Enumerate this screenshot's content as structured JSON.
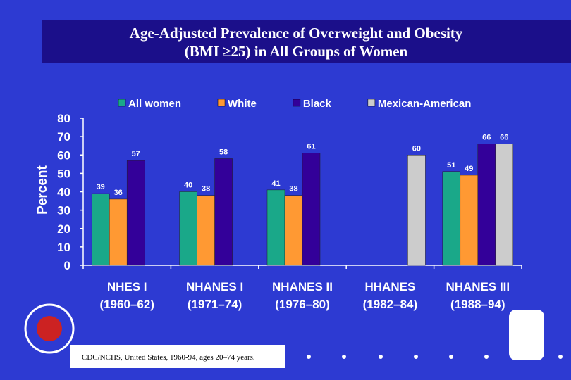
{
  "chart_data": {
    "type": "bar",
    "title": "Age-Adjusted Prevalence of Overweight and Obesity",
    "subtitle": "(BMI ≥25) in All Groups of Women",
    "y_label": "Percent",
    "categories": [
      "NHES I",
      "NHANES I",
      "NHANES II",
      "HHANES",
      "NHANES III"
    ],
    "periods": [
      "(1960–62)",
      "(1971–74)",
      "(1976–80)",
      "(1982–84)",
      "(1988–94)"
    ],
    "series": [
      {
        "name": "All women",
        "color": "#1aa889",
        "values": [
          39,
          40,
          41,
          null,
          51
        ]
      },
      {
        "name": "White",
        "color": "#ff9933",
        "values": [
          36,
          38,
          38,
          null,
          49
        ]
      },
      {
        "name": "Black",
        "color": "#330099",
        "values": [
          57,
          58,
          61,
          null,
          66
        ]
      },
      {
        "name": "Mexican-American",
        "color": "#cccccc",
        "values": [
          null,
          null,
          null,
          60,
          66
        ]
      }
    ],
    "ylim": [
      0,
      80
    ],
    "yticks": [
      0,
      10,
      20,
      30,
      40,
      50,
      60,
      70,
      80
    ],
    "source": "CDC/NCHS, United States, 1960-94, ages 20–74 years."
  }
}
